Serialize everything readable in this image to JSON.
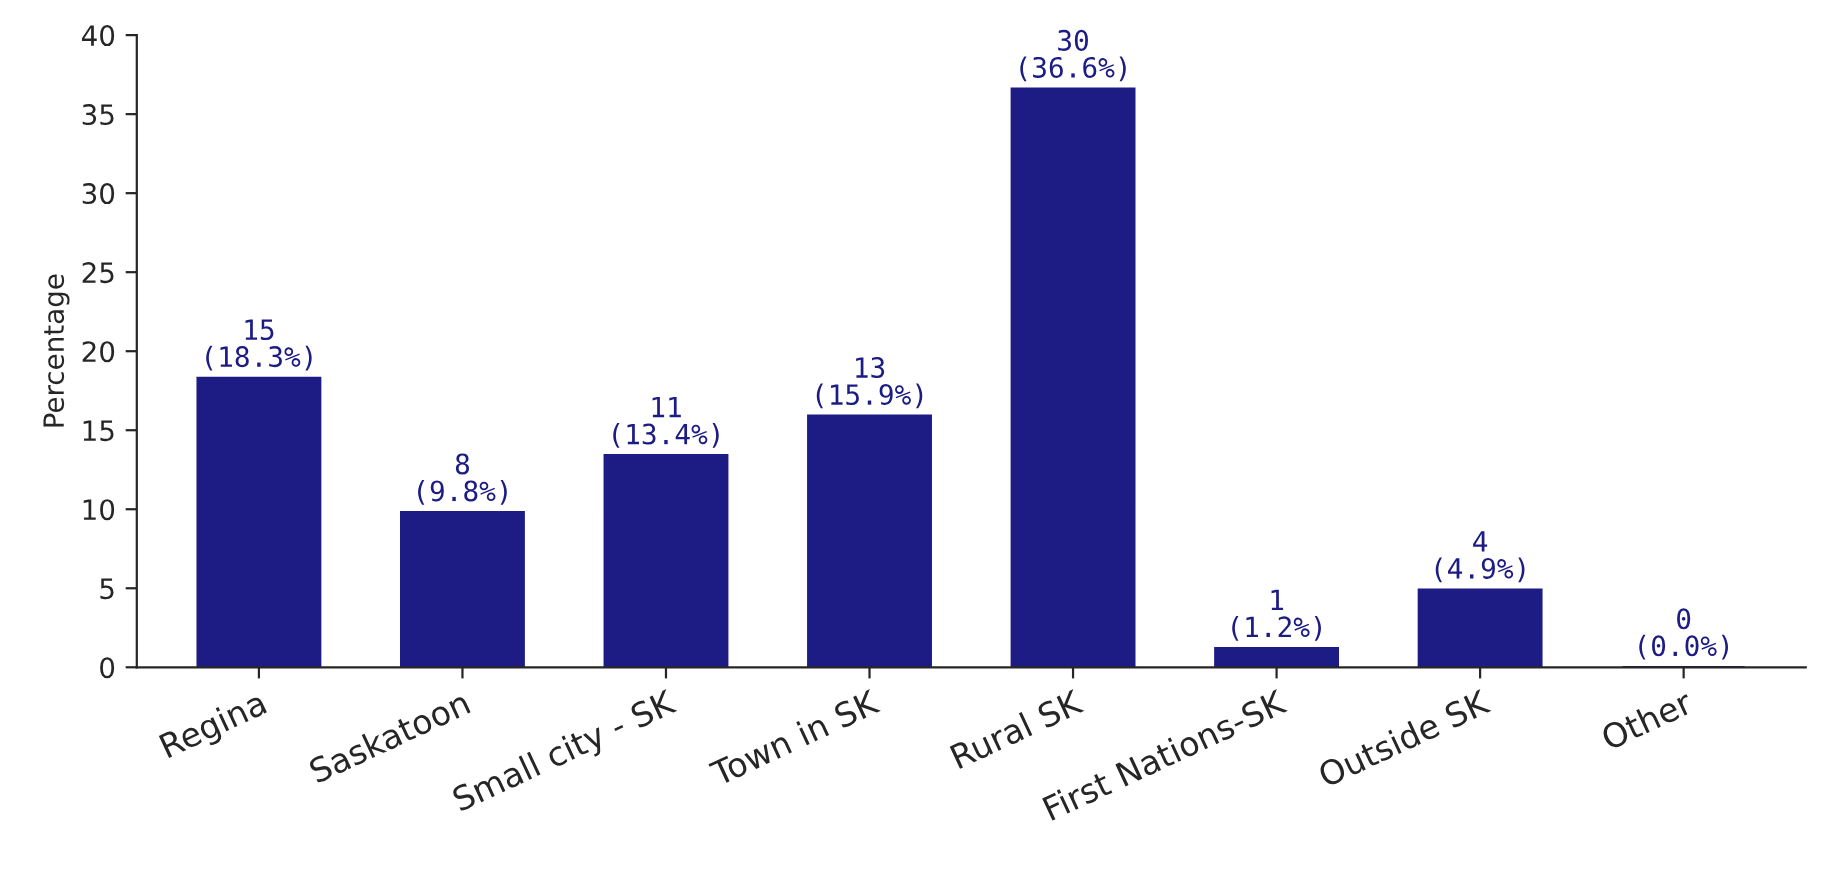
{
  "chart_data": {
    "type": "bar",
    "ylabel": "Percentage",
    "categories": [
      "Regina",
      "Saskatoon",
      "Small city - SK",
      "Town in SK",
      "Rural SK",
      "First Nations-SK",
      "Outside SK",
      "Other"
    ],
    "values": [
      18.3,
      9.8,
      13.4,
      15.9,
      36.6,
      1.2,
      4.9,
      0.0
    ],
    "value_labels": [
      "15\n(18.3%)",
      "8\n(9.8%)",
      "11\n(13.4%)",
      "13\n(15.9%)",
      "30\n(36.6%)",
      "1\n(1.2%)",
      "4\n(4.9%)",
      "0\n(0.0%)"
    ],
    "color": "#1c1c84",
    "ylim": [
      0,
      40
    ],
    "yticks": [
      0,
      5,
      10,
      15,
      20,
      25,
      30,
      35,
      40
    ],
    "grid": false,
    "legend": false
  }
}
